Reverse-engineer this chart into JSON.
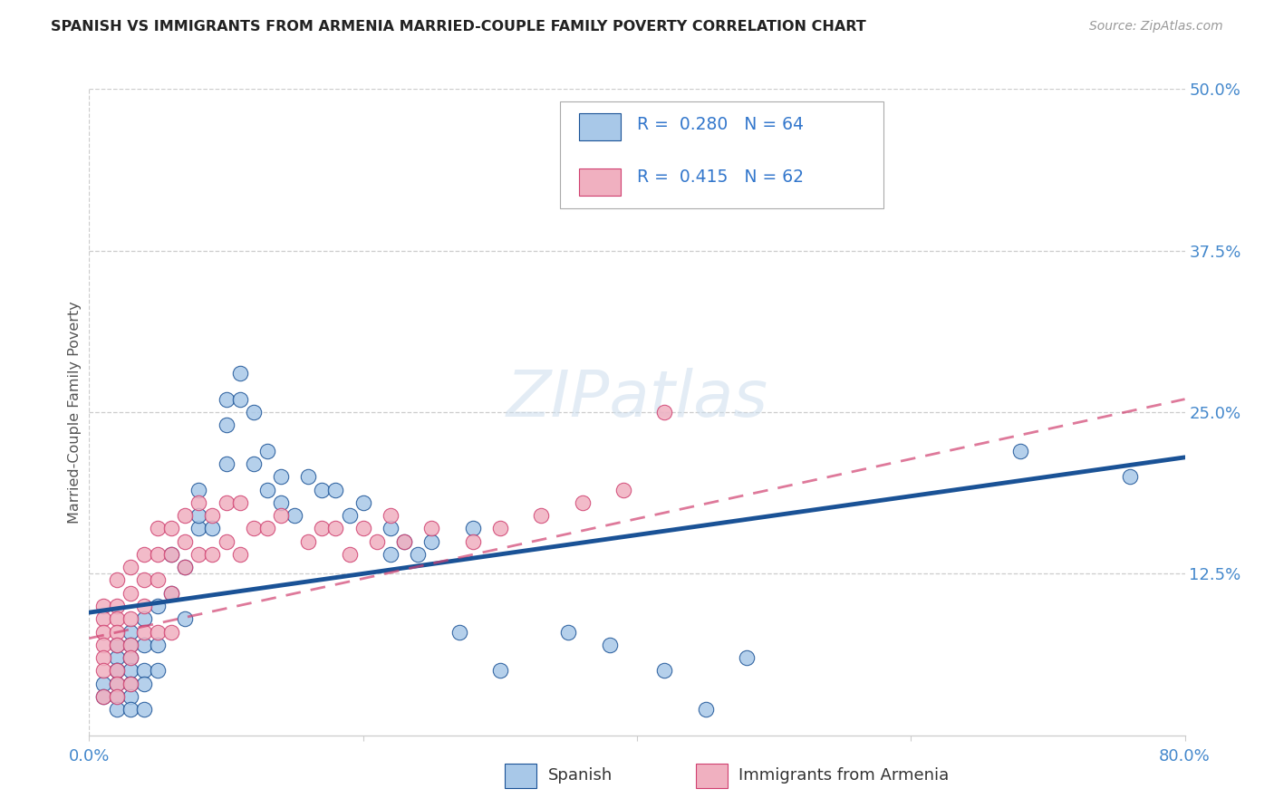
{
  "title": "SPANISH VS IMMIGRANTS FROM ARMENIA MARRIED-COUPLE FAMILY POVERTY CORRELATION CHART",
  "source": "Source: ZipAtlas.com",
  "ylabel": "Married-Couple Family Poverty",
  "xlim": [
    0.0,
    0.8
  ],
  "ylim": [
    0.0,
    0.5
  ],
  "spanish_color": "#a8c8e8",
  "armenia_color": "#f0b0c0",
  "trend_spanish_color": "#1a5296",
  "trend_armenia_color": "#d04070",
  "watermark": "ZIPatlas",
  "legend_r_spanish": "0.280",
  "legend_n_spanish": "64",
  "legend_r_armenia": "0.415",
  "legend_n_armenia": "62",
  "spanish_x": [
    0.01,
    0.01,
    0.02,
    0.02,
    0.02,
    0.02,
    0.02,
    0.02,
    0.02,
    0.03,
    0.03,
    0.03,
    0.03,
    0.03,
    0.03,
    0.03,
    0.04,
    0.04,
    0.04,
    0.04,
    0.04,
    0.05,
    0.05,
    0.05,
    0.06,
    0.06,
    0.07,
    0.07,
    0.08,
    0.08,
    0.08,
    0.09,
    0.1,
    0.1,
    0.1,
    0.11,
    0.11,
    0.12,
    0.12,
    0.13,
    0.13,
    0.14,
    0.14,
    0.15,
    0.16,
    0.17,
    0.18,
    0.19,
    0.2,
    0.22,
    0.22,
    0.23,
    0.24,
    0.25,
    0.27,
    0.28,
    0.3,
    0.35,
    0.38,
    0.42,
    0.45,
    0.48,
    0.68,
    0.76
  ],
  "spanish_y": [
    0.04,
    0.03,
    0.06,
    0.05,
    0.04,
    0.07,
    0.05,
    0.03,
    0.02,
    0.08,
    0.07,
    0.06,
    0.05,
    0.04,
    0.03,
    0.02,
    0.09,
    0.07,
    0.05,
    0.04,
    0.02,
    0.1,
    0.07,
    0.05,
    0.14,
    0.11,
    0.13,
    0.09,
    0.16,
    0.17,
    0.19,
    0.16,
    0.26,
    0.24,
    0.21,
    0.28,
    0.26,
    0.25,
    0.21,
    0.22,
    0.19,
    0.2,
    0.18,
    0.17,
    0.2,
    0.19,
    0.19,
    0.17,
    0.18,
    0.16,
    0.14,
    0.15,
    0.14,
    0.15,
    0.08,
    0.16,
    0.05,
    0.08,
    0.07,
    0.05,
    0.02,
    0.06,
    0.22,
    0.2
  ],
  "armenia_x": [
    0.01,
    0.01,
    0.01,
    0.01,
    0.01,
    0.01,
    0.01,
    0.02,
    0.02,
    0.02,
    0.02,
    0.02,
    0.02,
    0.02,
    0.02,
    0.03,
    0.03,
    0.03,
    0.03,
    0.03,
    0.03,
    0.04,
    0.04,
    0.04,
    0.04,
    0.05,
    0.05,
    0.05,
    0.05,
    0.06,
    0.06,
    0.06,
    0.06,
    0.07,
    0.07,
    0.07,
    0.08,
    0.08,
    0.09,
    0.09,
    0.1,
    0.1,
    0.11,
    0.11,
    0.12,
    0.13,
    0.14,
    0.16,
    0.17,
    0.18,
    0.19,
    0.2,
    0.21,
    0.22,
    0.23,
    0.25,
    0.28,
    0.3,
    0.33,
    0.36,
    0.39,
    0.42
  ],
  "armenia_y": [
    0.1,
    0.09,
    0.08,
    0.07,
    0.06,
    0.05,
    0.03,
    0.12,
    0.1,
    0.09,
    0.08,
    0.07,
    0.05,
    0.04,
    0.03,
    0.13,
    0.11,
    0.09,
    0.07,
    0.06,
    0.04,
    0.14,
    0.12,
    0.1,
    0.08,
    0.16,
    0.14,
    0.12,
    0.08,
    0.16,
    0.14,
    0.11,
    0.08,
    0.17,
    0.15,
    0.13,
    0.18,
    0.14,
    0.17,
    0.14,
    0.18,
    0.15,
    0.18,
    0.14,
    0.16,
    0.16,
    0.17,
    0.15,
    0.16,
    0.16,
    0.14,
    0.16,
    0.15,
    0.17,
    0.15,
    0.16,
    0.15,
    0.16,
    0.17,
    0.18,
    0.19,
    0.25
  ],
  "trend_spanish_x0": 0.0,
  "trend_spanish_y0": 0.095,
  "trend_spanish_x1": 0.8,
  "trend_spanish_y1": 0.215,
  "trend_armenia_x0": 0.0,
  "trend_armenia_y0": 0.075,
  "trend_armenia_x1": 0.8,
  "trend_armenia_y1": 0.26
}
